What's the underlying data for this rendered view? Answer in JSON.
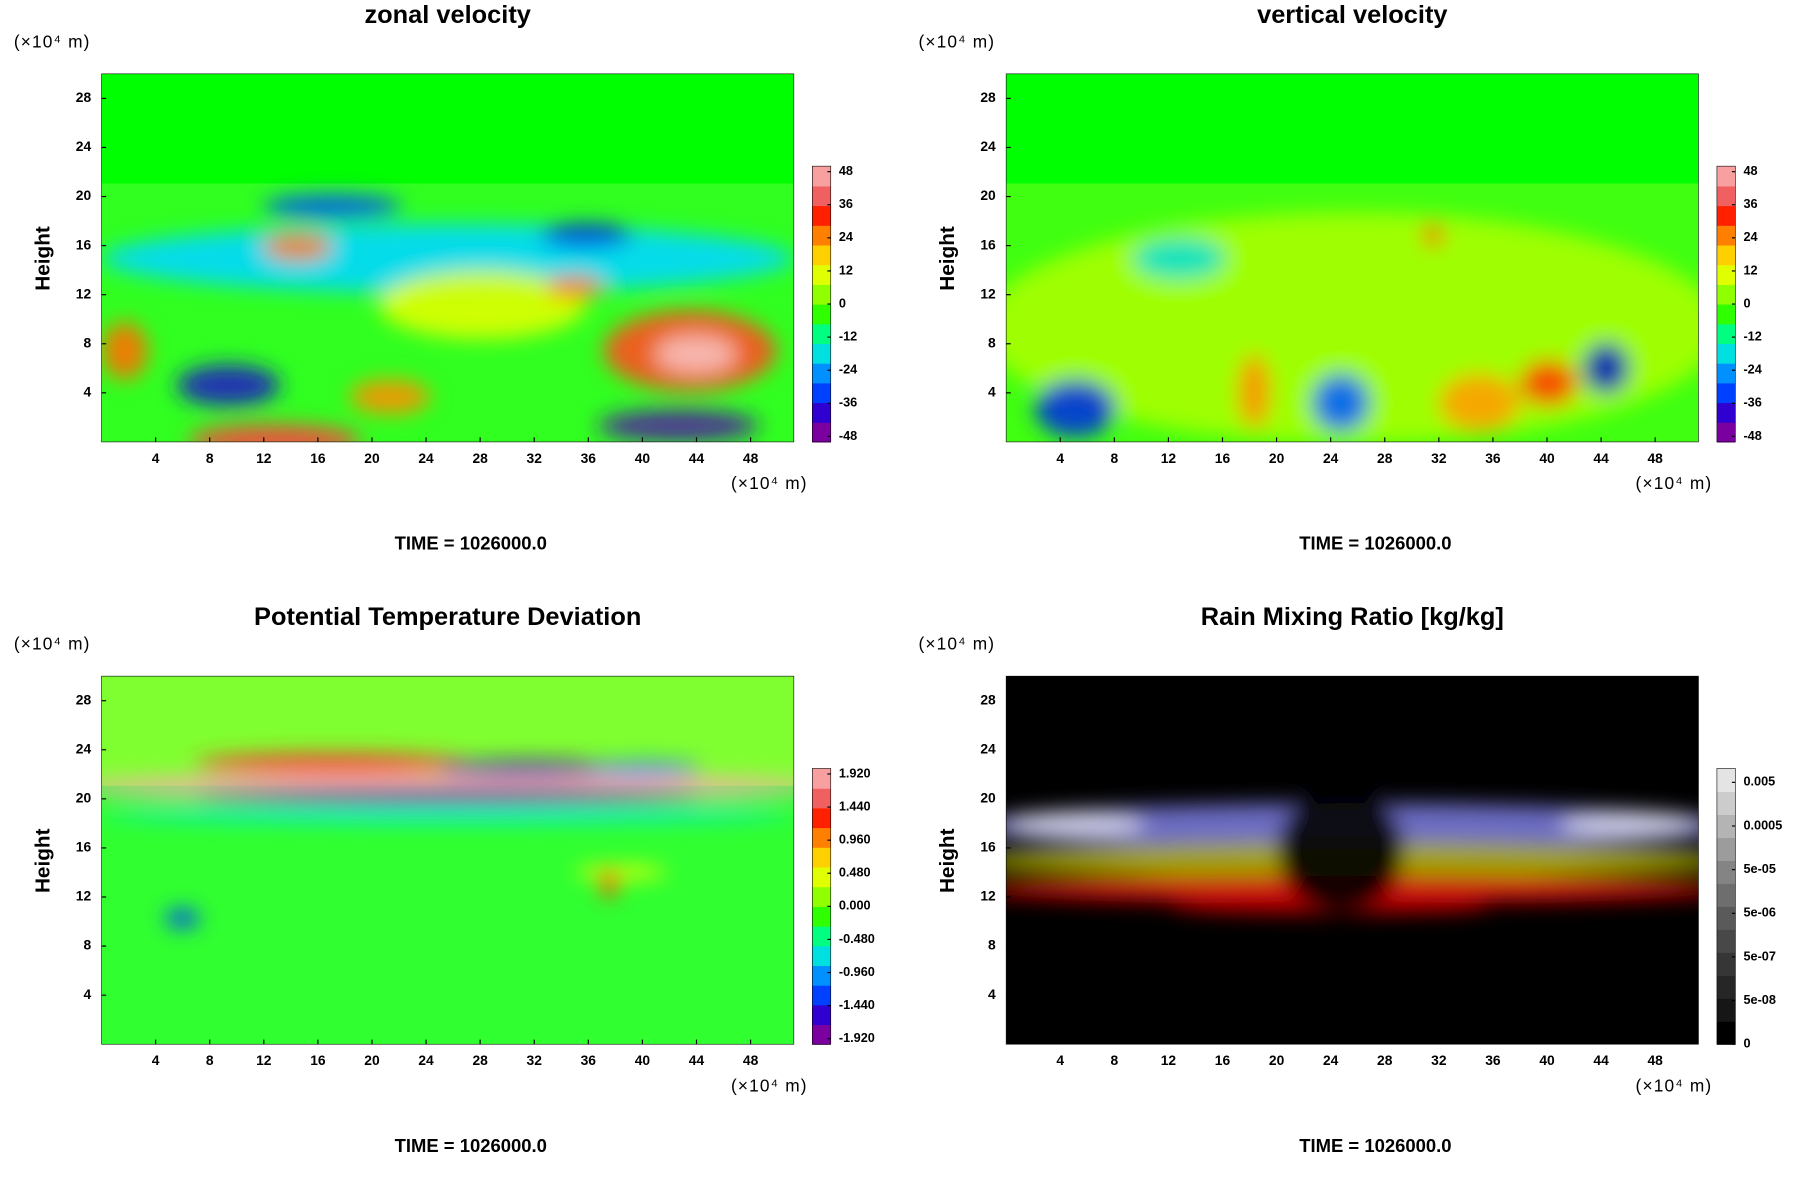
{
  "chart_data": [
    {
      "type": "contour",
      "title": "zonal velocity",
      "ylabel": "Height",
      "x_unit": "(×10⁴ m)",
      "y_unit": "(×10⁴ m)",
      "time": "TIME = 1026000.0",
      "xlim": [
        0,
        51.2
      ],
      "ylim": [
        0,
        30
      ],
      "xticks": [
        4,
        8,
        12,
        16,
        20,
        24,
        28,
        32,
        36,
        40,
        44,
        48
      ],
      "yticks": [
        4,
        8,
        12,
        16,
        20,
        24,
        28
      ],
      "colorbar": {
        "clim": [
          -50,
          50
        ],
        "log": false,
        "ticks": [
          48,
          36,
          24,
          12,
          0,
          -12,
          -24,
          -36,
          -48
        ],
        "colors": [
          "#7a00a0",
          "#3000d0",
          "#0040ff",
          "#0090ff",
          "#00e0e0",
          "#00ff80",
          "#30ff00",
          "#90ff00",
          "#e0ff00",
          "#ffd000",
          "#ff8000",
          "#ff2000",
          "#f06060",
          "#f8a0a0"
        ]
      }
    },
    {
      "type": "contour",
      "title": "vertical velocity",
      "ylabel": "Height",
      "x_unit": "(×10⁴ m)",
      "y_unit": "(×10⁴ m)",
      "time": "TIME = 1026000.0",
      "xlim": [
        0,
        51.2
      ],
      "ylim": [
        0,
        30
      ],
      "xticks": [
        4,
        8,
        12,
        16,
        20,
        24,
        28,
        32,
        36,
        40,
        44,
        48
      ],
      "yticks": [
        4,
        8,
        12,
        16,
        20,
        24,
        28
      ],
      "colorbar": {
        "clim": [
          -50,
          50
        ],
        "log": false,
        "ticks": [
          48,
          36,
          24,
          12,
          0,
          -12,
          -24,
          -36,
          -48
        ],
        "colors": [
          "#7a00a0",
          "#3000d0",
          "#0040ff",
          "#0090ff",
          "#00e0e0",
          "#00ff80",
          "#30ff00",
          "#90ff00",
          "#e0ff00",
          "#ffd000",
          "#ff8000",
          "#ff2000",
          "#f06060",
          "#f8a0a0"
        ]
      }
    },
    {
      "type": "contour",
      "title": "Potential Temperature Deviation",
      "ylabel": "Height",
      "x_unit": "(×10⁴ m)",
      "y_unit": "(×10⁴ m)",
      "time": "TIME = 1026000.0",
      "xlim": [
        0,
        51.2
      ],
      "ylim": [
        0,
        30
      ],
      "xticks": [
        4,
        8,
        12,
        16,
        20,
        24,
        28,
        32,
        36,
        40,
        44,
        48
      ],
      "yticks": [
        4,
        8,
        12,
        16,
        20,
        24,
        28
      ],
      "colorbar": {
        "clim": [
          -2,
          2
        ],
        "log": false,
        "ticks": [
          {
            "value": 1.92,
            "label": "1.920"
          },
          {
            "value": 1.44,
            "label": "1.440"
          },
          {
            "value": 0.96,
            "label": "0.960"
          },
          {
            "value": 0.48,
            "label": "0.480"
          },
          {
            "value": 0,
            "label": "0.000"
          },
          {
            "value": -0.48,
            "label": "-0.480"
          },
          {
            "value": -0.96,
            "label": "-0.960"
          },
          {
            "value": -1.44,
            "label": "-1.440"
          },
          {
            "value": -1.92,
            "label": "-1.920"
          }
        ],
        "colors": [
          "#7a00a0",
          "#3000d0",
          "#0040ff",
          "#0090ff",
          "#00e0e0",
          "#00ff80",
          "#30ff00",
          "#90ff00",
          "#e0ff00",
          "#ffd000",
          "#ff8000",
          "#ff2000",
          "#f06060",
          "#f8a0a0"
        ]
      }
    },
    {
      "type": "contour",
      "title": "Rain Mixing Ratio [kg/kg]",
      "ylabel": "Height",
      "x_unit": "(×10⁴ m)",
      "y_unit": "(×10⁴ m)",
      "time": "TIME = 1026000.0",
      "xlim": [
        0,
        51.2
      ],
      "ylim": [
        0,
        30
      ],
      "xticks": [
        4,
        8,
        12,
        16,
        20,
        24,
        28,
        32,
        36,
        40,
        44,
        48
      ],
      "yticks": [
        4,
        8,
        12,
        16,
        20,
        24,
        28
      ],
      "colorbar": {
        "clim": [
          5e-09,
          0.0104
        ],
        "log": true,
        "ticks": [
          0.005,
          0.0005,
          {
            "value": 5e-05,
            "label": "5e-05"
          },
          {
            "value": 5e-06,
            "label": "5e-06"
          },
          {
            "value": 5e-07,
            "label": "5e-07"
          },
          {
            "value": 5e-08,
            "label": "5e-08"
          },
          0
        ],
        "colors": [
          "#000000",
          "#161616",
          "#262626",
          "#363636",
          "#484848",
          "#5a5a5a",
          "#6e6e6e",
          "#848484",
          "#9c9c9c",
          "#b4b4b4",
          "#cccccc",
          "#e4e4e4"
        ]
      }
    }
  ]
}
